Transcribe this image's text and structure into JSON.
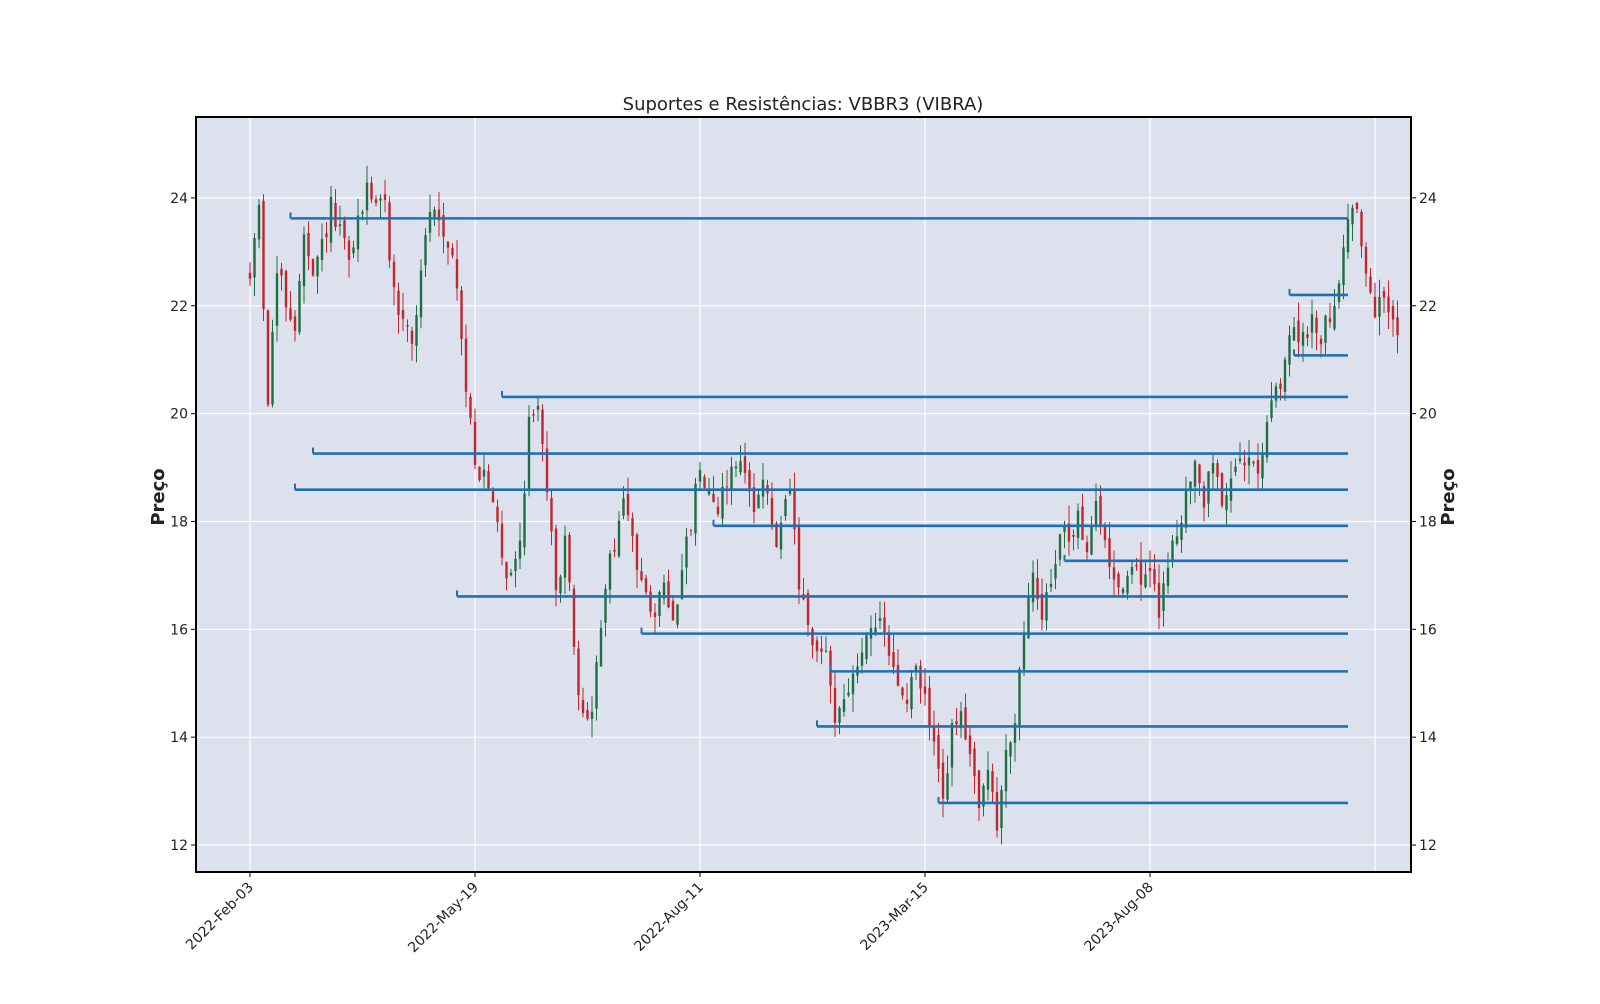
{
  "chart_data": {
    "type": "candlestick",
    "title": "Suportes e Resistências: VBBR3 (VIBRA)",
    "ylabel_left": "Preço",
    "ylabel_right": "Preço",
    "ylim": [
      11.5,
      25.5
    ],
    "y_ticks": [
      12,
      14,
      16,
      18,
      20,
      22,
      24
    ],
    "x_tick_labels": [
      "2022-Feb-03",
      "2022-May-19",
      "2022-Aug-11",
      "2023-Mar-15",
      "2023-Aug-08"
    ],
    "x_tick_positions": [
      0,
      50,
      100,
      150,
      200
    ],
    "x_range": [
      -12,
      258
    ],
    "grid": true,
    "colors": {
      "plot_background": "#dce1ed",
      "grid": "#ffffff",
      "up_candle": "#1f6e43",
      "down_candle": "#c0262b",
      "level_line": "#1f6fb4",
      "frame": "#000000"
    },
    "price_anchors": [
      [
        0,
        22.5
      ],
      [
        2,
        23.9
      ],
      [
        4,
        20.3
      ],
      [
        6,
        22.6
      ],
      [
        10,
        21.6
      ],
      [
        12,
        23.2
      ],
      [
        14,
        22.4
      ],
      [
        18,
        23.8
      ],
      [
        22,
        22.8
      ],
      [
        26,
        24.2
      ],
      [
        30,
        23.8
      ],
      [
        32,
        22.2
      ],
      [
        36,
        21.3
      ],
      [
        40,
        23.8
      ],
      [
        44,
        23.3
      ],
      [
        46,
        22.3
      ],
      [
        48,
        20.4
      ],
      [
        50,
        19.2
      ],
      [
        54,
        18.3
      ],
      [
        57,
        17.0
      ],
      [
        60,
        17.6
      ],
      [
        62,
        19.8
      ],
      [
        64,
        20.3
      ],
      [
        66,
        18.6
      ],
      [
        68,
        16.6
      ],
      [
        70,
        17.8
      ],
      [
        72,
        15.5
      ],
      [
        74,
        14.3
      ],
      [
        76,
        14.5
      ],
      [
        79,
        16.8
      ],
      [
        83,
        18.4
      ],
      [
        86,
        17.2
      ],
      [
        88,
        16.9
      ],
      [
        90,
        16.2
      ],
      [
        92,
        16.8
      ],
      [
        94,
        16.3
      ],
      [
        96,
        17.0
      ],
      [
        100,
        19.0
      ],
      [
        104,
        18.3
      ],
      [
        108,
        19.2
      ],
      [
        112,
        18.4
      ],
      [
        114,
        18.8
      ],
      [
        117,
        17.5
      ],
      [
        120,
        18.6
      ],
      [
        122,
        16.8
      ],
      [
        124,
        15.9
      ],
      [
        126,
        15.5
      ],
      [
        128,
        15.6
      ],
      [
        130,
        14.4
      ],
      [
        132,
        14.8
      ],
      [
        134,
        15.0
      ],
      [
        136,
        15.6
      ],
      [
        138,
        16.2
      ],
      [
        140,
        16.0
      ],
      [
        142,
        15.5
      ],
      [
        144,
        15.0
      ],
      [
        146,
        14.6
      ],
      [
        148,
        15.3
      ],
      [
        150,
        14.7
      ],
      [
        152,
        13.8
      ],
      [
        154,
        12.9
      ],
      [
        156,
        14.1
      ],
      [
        158,
        14.3
      ],
      [
        160,
        13.6
      ],
      [
        162,
        12.9
      ],
      [
        164,
        13.3
      ],
      [
        166,
        12.3
      ],
      [
        168,
        13.8
      ],
      [
        170,
        14.3
      ],
      [
        172,
        15.8
      ],
      [
        174,
        17.1
      ],
      [
        176,
        16.2
      ],
      [
        178,
        17.0
      ],
      [
        180,
        17.8
      ],
      [
        182,
        17.6
      ],
      [
        184,
        18.1
      ],
      [
        186,
        17.6
      ],
      [
        188,
        18.2
      ],
      [
        190,
        17.6
      ],
      [
        192,
        17.0
      ],
      [
        194,
        16.8
      ],
      [
        196,
        17.3
      ],
      [
        198,
        16.9
      ],
      [
        200,
        17.0
      ],
      [
        202,
        16.4
      ],
      [
        204,
        17.2
      ],
      [
        206,
        17.8
      ],
      [
        208,
        18.6
      ],
      [
        210,
        18.9
      ],
      [
        212,
        18.4
      ],
      [
        214,
        19.1
      ],
      [
        216,
        18.5
      ],
      [
        218,
        18.6
      ],
      [
        220,
        19.1
      ],
      [
        222,
        19.4
      ],
      [
        224,
        19.1
      ],
      [
        226,
        19.8
      ],
      [
        228,
        20.3
      ],
      [
        230,
        20.8
      ],
      [
        232,
        21.7
      ],
      [
        234,
        21.3
      ],
      [
        236,
        21.8
      ],
      [
        238,
        21.5
      ],
      [
        240,
        21.9
      ],
      [
        242,
        22.4
      ],
      [
        244,
        23.6
      ],
      [
        246,
        23.9
      ],
      [
        248,
        22.4
      ],
      [
        250,
        21.9
      ],
      [
        252,
        22.1
      ],
      [
        254,
        21.7
      ],
      [
        255,
        21.6
      ]
    ],
    "levels": [
      {
        "price": 23.62,
        "x_start": 9,
        "x_end": 244
      },
      {
        "price": 22.2,
        "x_start": 231,
        "x_end": 244
      },
      {
        "price": 21.08,
        "x_start": 232,
        "x_end": 244
      },
      {
        "price": 20.31,
        "x_start": 56,
        "x_end": 244
      },
      {
        "price": 19.26,
        "x_start": 14,
        "x_end": 244
      },
      {
        "price": 18.59,
        "x_start": 10,
        "x_end": 244
      },
      {
        "price": 17.92,
        "x_start": 103,
        "x_end": 244
      },
      {
        "price": 17.27,
        "x_start": 181,
        "x_end": 244
      },
      {
        "price": 16.61,
        "x_start": 46,
        "x_end": 244
      },
      {
        "price": 15.92,
        "x_start": 87,
        "x_end": 244
      },
      {
        "price": 15.22,
        "x_start": 129,
        "x_end": 244
      },
      {
        "price": 14.2,
        "x_start": 126,
        "x_end": 244
      },
      {
        "price": 12.78,
        "x_start": 153,
        "x_end": 244
      }
    ]
  }
}
